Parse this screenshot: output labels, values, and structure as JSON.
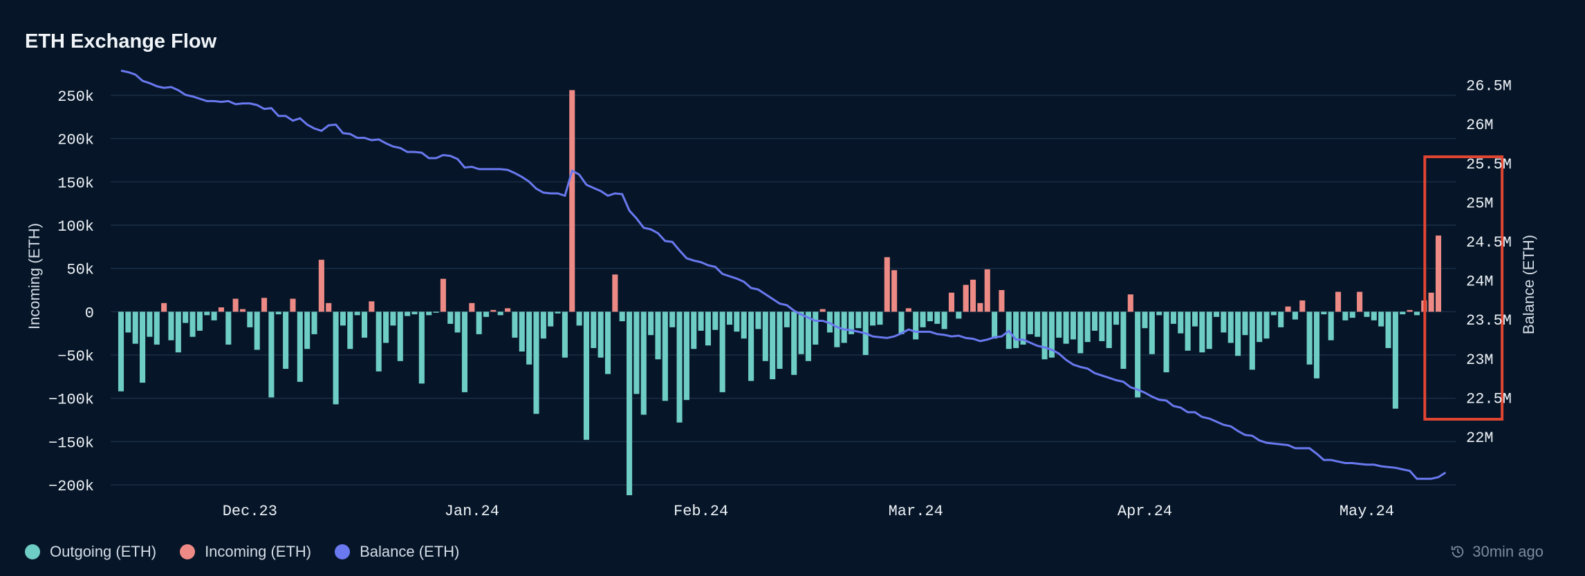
{
  "title": "ETH Exchange Flow",
  "updated": "30min ago",
  "legend": [
    {
      "label": "Outgoing (ETH)",
      "color": "#6ecdc4"
    },
    {
      "label": "Incoming (ETH)",
      "color": "#ee8a85"
    },
    {
      "label": "Balance (ETH)",
      "color": "#6a79f0"
    }
  ],
  "colors": {
    "outgoing": "#6ecdc4",
    "incoming": "#ee8a85",
    "balance": "#6a79f0",
    "grid": "#1b2e45",
    "highlight": "#e04532"
  },
  "chart_data": {
    "type": "bar",
    "x_ticks": [
      "Dec.23",
      "Jan.24",
      "Feb.24",
      "Mar.24",
      "Apr.24",
      "May.24"
    ],
    "y_left": {
      "label": "Incoming (ETH)",
      "ticks": [
        "250k",
        "200k",
        "150k",
        "100k",
        "50k",
        "0",
        "−50k",
        "−100k",
        "−150k",
        "−200k"
      ],
      "range": [
        -200000,
        250000
      ]
    },
    "y_right": {
      "label": "Balance (ETH)",
      "ticks": [
        "26.5M",
        "26M",
        "25.5M",
        "25M",
        "24.5M",
        "24M",
        "23.5M",
        "23M",
        "22.5M",
        "22M"
      ],
      "range": [
        21700000,
        26700000
      ]
    },
    "flow": [
      -92000,
      -24000,
      -37000,
      -82000,
      -29000,
      -38000,
      10000,
      -33000,
      -47000,
      -13000,
      -29000,
      -22000,
      -4000,
      -10000,
      5000,
      -38000,
      15000,
      3000,
      -18000,
      -44000,
      16000,
      -99000,
      -3000,
      -66000,
      15000,
      -81000,
      -43000,
      -26000,
      60000,
      10000,
      -107000,
      -16000,
      -43000,
      -4000,
      -30000,
      12000,
      -69000,
      -36000,
      -16000,
      -57000,
      -5000,
      -3000,
      -83000,
      -4000,
      -1000,
      38000,
      -14000,
      -24000,
      -93000,
      10000,
      -26000,
      -6000,
      2000,
      -4000,
      4000,
      -30000,
      -46000,
      -61000,
      -118000,
      -31000,
      -17000,
      -2000,
      -53000,
      256000,
      -16000,
      -148000,
      -42000,
      -53000,
      -72000,
      43000,
      -11000,
      -212000,
      -95000,
      -119000,
      -27000,
      -55000,
      -103000,
      -18000,
      -128000,
      -102000,
      -43000,
      -22000,
      -39000,
      -21000,
      -93000,
      -15000,
      -23000,
      -31000,
      -80000,
      -20000,
      -57000,
      -78000,
      -66000,
      -18000,
      -73000,
      -49000,
      -57000,
      -38000,
      3000,
      -24000,
      -41000,
      -36000,
      -26000,
      -19000,
      -50000,
      -16000,
      -15000,
      63000,
      48000,
      -26000,
      4000,
      -32000,
      -18000,
      -11000,
      -14000,
      -20000,
      22000,
      -8000,
      31000,
      37000,
      10000,
      49000,
      -31000,
      25000,
      -43000,
      -42000,
      -38000,
      -26000,
      -29000,
      -55000,
      -53000,
      -30000,
      -37000,
      -32000,
      -48000,
      -35000,
      -22000,
      -34000,
      -42000,
      -15000,
      -66000,
      20000,
      -99000,
      -19000,
      -49000,
      -4000,
      -70000,
      -14000,
      -25000,
      -45000,
      -17000,
      -47000,
      -43000,
      -6000,
      -24000,
      -36000,
      -51000,
      -27000,
      -67000,
      -35000,
      -31000,
      -4000,
      -18000,
      6000,
      -9000,
      13000,
      -61000,
      -77000,
      -3000,
      -33000,
      23000,
      -10000,
      -7000,
      23000,
      -6000,
      -10000,
      -17000,
      -42000,
      -112000,
      -3000,
      2000,
      -4000,
      13000,
      22000,
      88000
    ],
    "balance": [
      26680000,
      26660000,
      26630000,
      26550000,
      26520000,
      26480000,
      26460000,
      26470000,
      26430000,
      26370000,
      26350000,
      26320000,
      26290000,
      26290000,
      26280000,
      26290000,
      26250000,
      26260000,
      26260000,
      26240000,
      26190000,
      26200000,
      26100000,
      26100000,
      26040000,
      26070000,
      25990000,
      25940000,
      25910000,
      25980000,
      25990000,
      25880000,
      25870000,
      25820000,
      25820000,
      25790000,
      25800000,
      25750000,
      25710000,
      25690000,
      25640000,
      25640000,
      25630000,
      25560000,
      25560000,
      25600000,
      25590000,
      25550000,
      25440000,
      25450000,
      25420000,
      25420000,
      25420000,
      25420000,
      25410000,
      25370000,
      25320000,
      25260000,
      25170000,
      25120000,
      25110000,
      25110000,
      25080000,
      25400000,
      25350000,
      25220000,
      25180000,
      25140000,
      25080000,
      25110000,
      25100000,
      24890000,
      24790000,
      24670000,
      24650000,
      24600000,
      24500000,
      24490000,
      24380000,
      24280000,
      24250000,
      24230000,
      24190000,
      24170000,
      24080000,
      24050000,
      24020000,
      23980000,
      23900000,
      23880000,
      23820000,
      23760000,
      23700000,
      23680000,
      23610000,
      23560000,
      23520000,
      23480000,
      23480000,
      23450000,
      23400000,
      23370000,
      23360000,
      23340000,
      23320000,
      23280000,
      23270000,
      23260000,
      23280000,
      23320000,
      23370000,
      23340000,
      23340000,
      23340000,
      23310000,
      23300000,
      23280000,
      23290000,
      23260000,
      23250000,
      23220000,
      23240000,
      23270000,
      23280000,
      23350000,
      23240000,
      23240000,
      23200000,
      23160000,
      23140000,
      23110000,
      23060000,
      22980000,
      22920000,
      22890000,
      22870000,
      22810000,
      22780000,
      22750000,
      22720000,
      22700000,
      22630000,
      22600000,
      22560000,
      22510000,
      22470000,
      22460000,
      22390000,
      22370000,
      22310000,
      22310000,
      22250000,
      22230000,
      22190000,
      22150000,
      22130000,
      22070000,
      22020000,
      22010000,
      21950000,
      21920000,
      21910000,
      21900000,
      21890000,
      21850000,
      21850000,
      21850000,
      21780000,
      21700000,
      21700000,
      21680000,
      21660000,
      21660000,
      21650000,
      21640000,
      21640000,
      21620000,
      21610000,
      21600000,
      21580000,
      21560000,
      21460000,
      21460000,
      21460000,
      21480000,
      21540000
    ],
    "highlight_range": [
      183,
      192
    ]
  }
}
